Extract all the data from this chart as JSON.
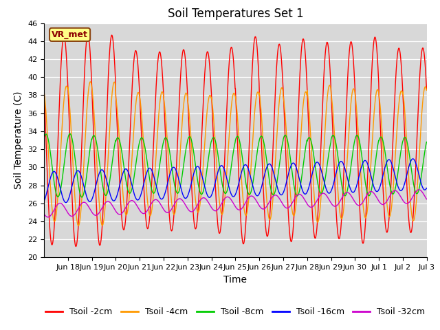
{
  "title": "Soil Temperatures Set 1",
  "xlabel": "Time",
  "ylabel": "Soil Temperature (C)",
  "ylim": [
    20,
    46
  ],
  "yticks": [
    20,
    22,
    24,
    26,
    28,
    30,
    32,
    34,
    36,
    38,
    40,
    42,
    44,
    46
  ],
  "xtick_labels": [
    "Jun 18",
    "Jun 19",
    "Jun 20",
    "Jun 21",
    "Jun 22",
    "Jun 23",
    "Jun 24",
    "Jun 25",
    "Jun 26",
    "Jun 27",
    "Jun 28",
    "Jun 29",
    "Jun 30",
    "Jul 1",
    "Jul 2",
    "Jul 3"
  ],
  "colors": {
    "2cm": "#ff0000",
    "4cm": "#ff9900",
    "8cm": "#00cc00",
    "16cm": "#0000ff",
    "32cm": "#cc00cc"
  },
  "legend_labels": [
    "Tsoil -2cm",
    "Tsoil -4cm",
    "Tsoil -8cm",
    "Tsoil -16cm",
    "Tsoil -32cm"
  ],
  "annotation_text": "VR_met",
  "plot_bg": "#d8d8d8",
  "fig_bg": "#ffffff",
  "grid_color": "#ffffff",
  "title_fontsize": 12,
  "axis_label_fontsize": 10,
  "tick_fontsize": 8,
  "legend_fontsize": 9
}
